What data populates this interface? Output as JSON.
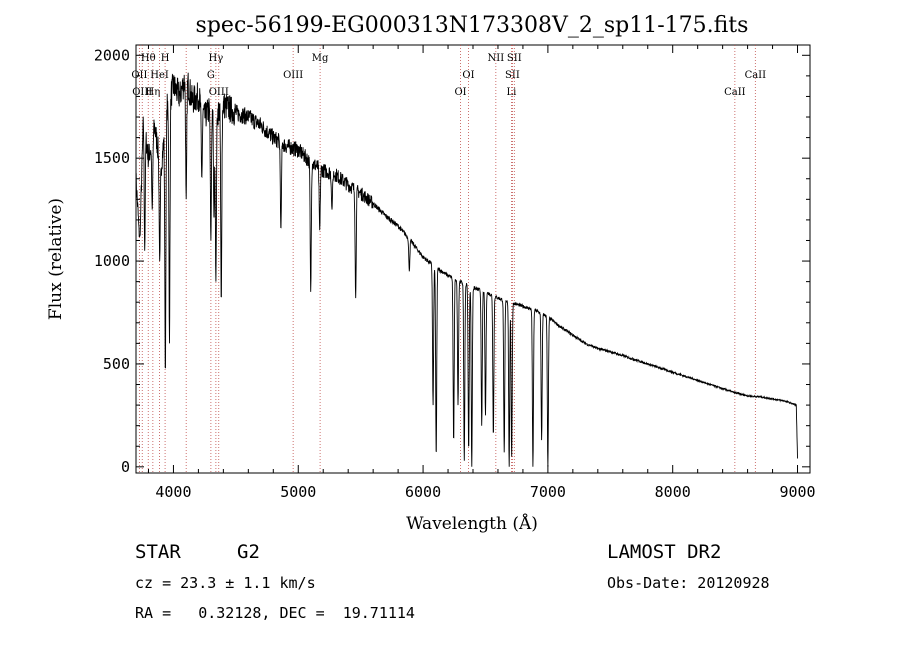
{
  "chart_data": {
    "type": "line",
    "title": "spec-56199-EG000313N173308V_2_sp11-175.fits",
    "xlabel": "Wavelength (Å)",
    "ylabel": "Flux (relative)",
    "xlim": [
      3700,
      9100
    ],
    "ylim": [
      -30,
      2050
    ],
    "x_ticks": [
      4000,
      5000,
      6000,
      7000,
      8000,
      9000
    ],
    "y_ticks": [
      0,
      500,
      1000,
      1500,
      2000
    ],
    "grid": false,
    "series": [
      {
        "x": [
          3700,
          3730,
          3760,
          3800,
          3850,
          3900,
          3950,
          4000,
          4050,
          4100,
          4150,
          4200,
          4250,
          4300,
          4350,
          4400,
          4450,
          4500,
          4600,
          4700,
          4800,
          4900,
          5000,
          5100,
          5200,
          5300,
          5400,
          5500,
          5600,
          5700,
          5800,
          5900,
          6000,
          6100,
          6200,
          6300,
          6400,
          6500,
          6600,
          6700,
          6800,
          6900,
          7000,
          7100,
          7200,
          7300,
          7400,
          7500,
          7600,
          7700,
          7800,
          7900,
          8000,
          8100,
          8200,
          8300,
          8400,
          8500,
          8600,
          8700,
          8800,
          8900,
          8990,
          9000
        ],
        "y": [
          1400,
          1100,
          1700,
          1500,
          1650,
          1450,
          1750,
          1850,
          1800,
          1900,
          1780,
          1800,
          1700,
          1750,
          1720,
          1760,
          1740,
          1720,
          1700,
          1660,
          1600,
          1560,
          1540,
          1480,
          1440,
          1420,
          1370,
          1330,
          1280,
          1220,
          1170,
          1100,
          1020,
          970,
          930,
          900,
          870,
          850,
          820,
          800,
          780,
          760,
          730,
          680,
          640,
          600,
          575,
          560,
          540,
          520,
          500,
          480,
          460,
          440,
          420,
          400,
          380,
          360,
          345,
          340,
          330,
          320,
          300,
          40
        ]
      }
    ],
    "absorption_lines": [
      {
        "x": 3730,
        "y": 1120
      },
      {
        "x": 3770,
        "y": 1050
      },
      {
        "x": 3830,
        "y": 1250
      },
      {
        "x": 3890,
        "y": 1000
      },
      {
        "x": 3935,
        "y": 450
      },
      {
        "x": 3968,
        "y": 600
      },
      {
        "x": 4102,
        "y": 1300
      },
      {
        "x": 4227,
        "y": 1400
      },
      {
        "x": 4300,
        "y": 1100
      },
      {
        "x": 4325,
        "y": 1200
      },
      {
        "x": 4340,
        "y": 900
      },
      {
        "x": 4383,
        "y": 800
      },
      {
        "x": 4861,
        "y": 1150
      },
      {
        "x": 5100,
        "y": 850
      },
      {
        "x": 5172,
        "y": 1150
      },
      {
        "x": 5270,
        "y": 1250
      },
      {
        "x": 5460,
        "y": 820
      },
      {
        "x": 5890,
        "y": 950
      },
      {
        "x": 6080,
        "y": 300
      },
      {
        "x": 6105,
        "y": 50
      },
      {
        "x": 6245,
        "y": 120
      },
      {
        "x": 6280,
        "y": 300
      },
      {
        "x": 6330,
        "y": 30
      },
      {
        "x": 6365,
        "y": 80
      },
      {
        "x": 6390,
        "y": 0
      },
      {
        "x": 6470,
        "y": 200
      },
      {
        "x": 6500,
        "y": 250
      },
      {
        "x": 6563,
        "y": 150
      },
      {
        "x": 6650,
        "y": 70
      },
      {
        "x": 6690,
        "y": 0
      },
      {
        "x": 6710,
        "y": 50
      },
      {
        "x": 6880,
        "y": 0
      },
      {
        "x": 6950,
        "y": 130
      },
      {
        "x": 7000,
        "y": 0
      }
    ],
    "spectral_lines": [
      {
        "x": 3727,
        "label": "OII",
        "row": 2
      },
      {
        "x": 3750,
        "label": "OIII",
        "row": 3
      },
      {
        "x": 3798,
        "label": "Hθ",
        "row": 1
      },
      {
        "x": 3835,
        "label": "Hη",
        "row": 3
      },
      {
        "x": 3889,
        "label": "HeI",
        "row": 2
      },
      {
        "x": 3933,
        "label": "H",
        "row": 1
      },
      {
        "x": 4102,
        "label": "",
        "row": 0
      },
      {
        "x": 4300,
        "label": "G",
        "row": 2
      },
      {
        "x": 4340,
        "label": "Hγ",
        "row": 1
      },
      {
        "x": 4363,
        "label": "OIII",
        "row": 3
      },
      {
        "x": 4959,
        "label": "OIII",
        "row": 2
      },
      {
        "x": 5175,
        "label": "Mg",
        "row": 1
      },
      {
        "x": 6300,
        "label": "OI",
        "row": 3
      },
      {
        "x": 6364,
        "label": "OI",
        "row": 2
      },
      {
        "x": 6583,
        "label": "NII",
        "row": 1
      },
      {
        "x": 6708,
        "label": "Li",
        "row": 3
      },
      {
        "x": 6716,
        "label": "SII",
        "row": 2
      },
      {
        "x": 6731,
        "label": "SII",
        "row": 1
      },
      {
        "x": 8498,
        "label": "CaII",
        "row": 3
      },
      {
        "x": 8662,
        "label": "CaII",
        "row": 2
      }
    ]
  },
  "footer": {
    "object_class": "STAR",
    "subclass": "G2",
    "cz": "cz = 23.3 ± 1.1 km/s",
    "radec": "RA =   0.32128, DEC =  19.71114",
    "survey": "LAMOST DR2",
    "obs_date": "Obs-Date: 20120928"
  }
}
